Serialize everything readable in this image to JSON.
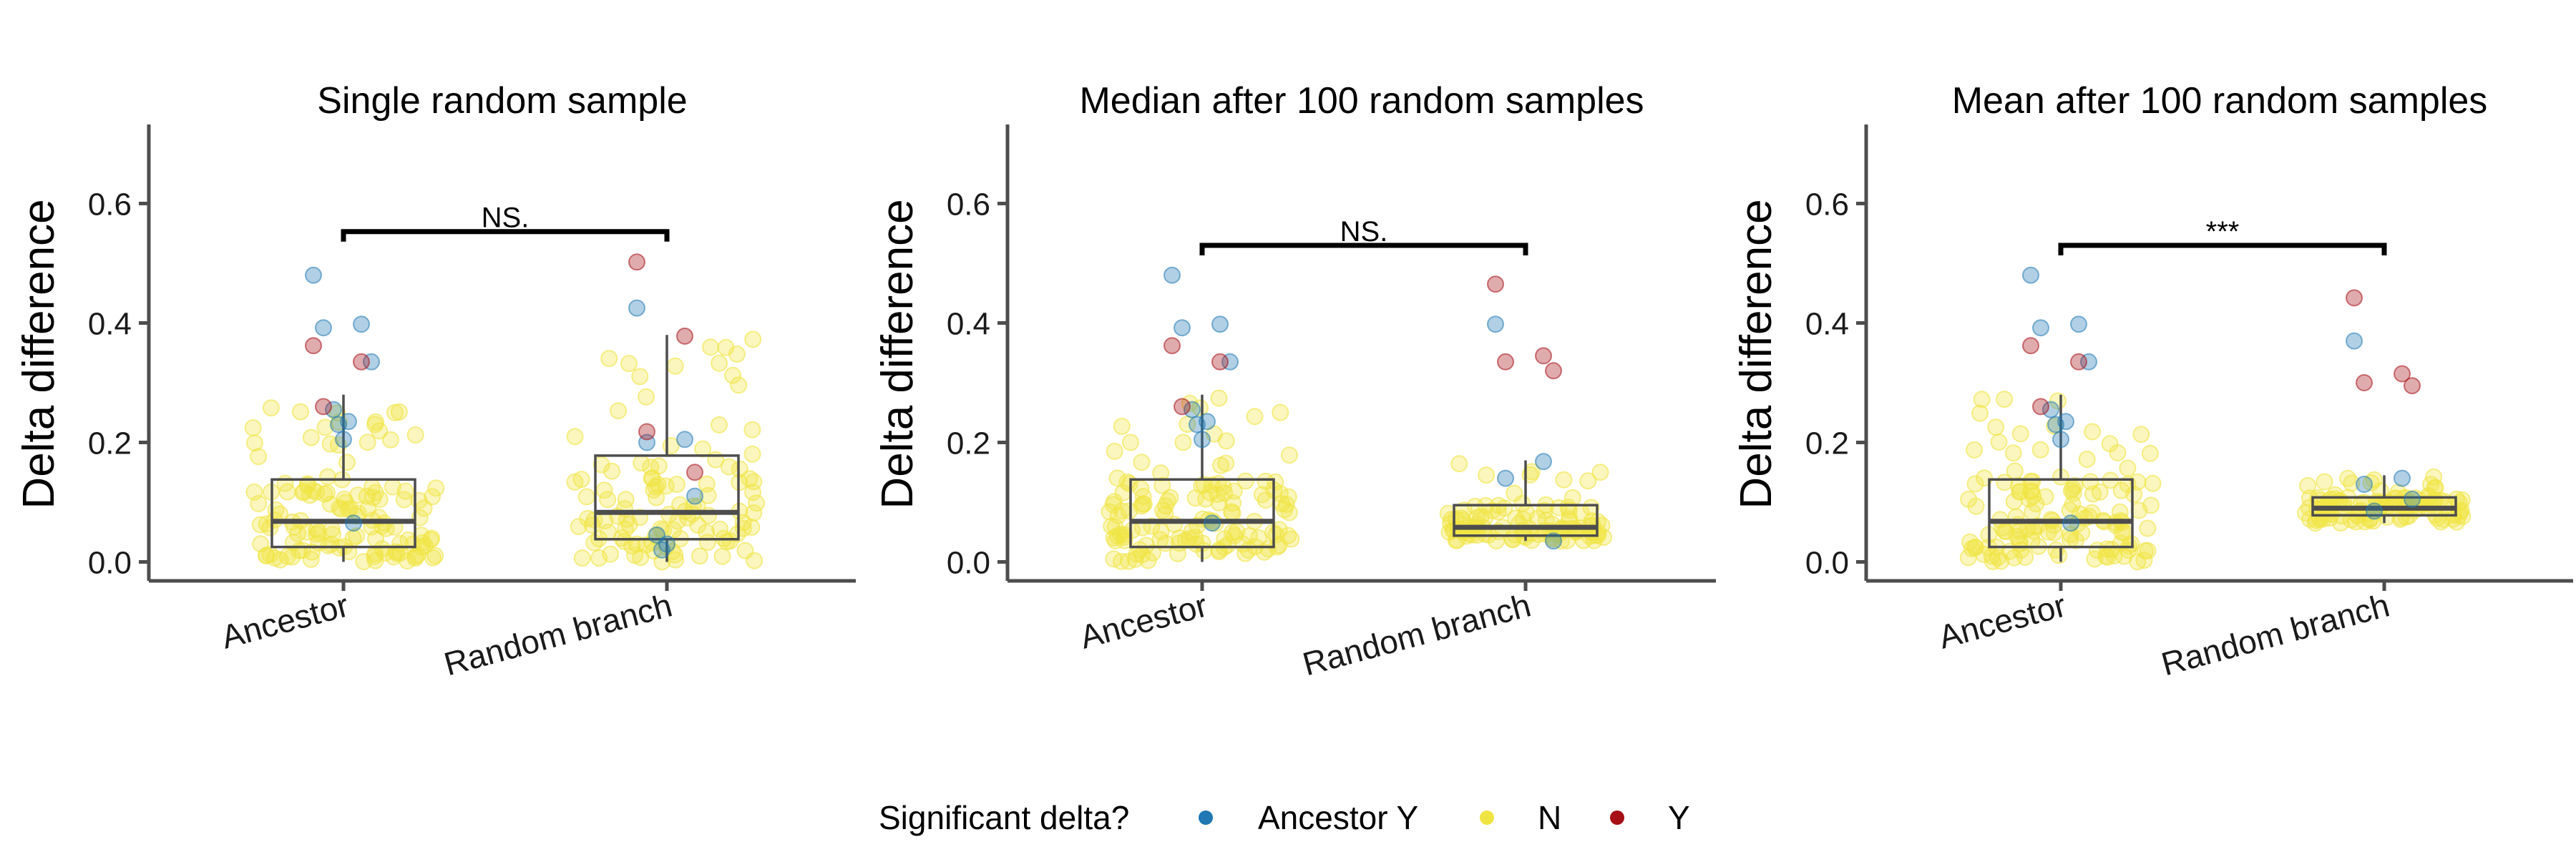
{
  "chart_data": [
    {
      "type": "boxplot",
      "title": "Single random sample",
      "ylabel": "Delta difference",
      "xlabel": "",
      "categories": [
        "Ancestor",
        "Random branch"
      ],
      "yticks": [
        "0.0",
        "0.2",
        "0.4",
        "0.6"
      ],
      "ylim": [
        -0.03,
        0.74
      ],
      "boxes": [
        {
          "category": "Ancestor",
          "q1": 0.025,
          "median": 0.068,
          "q3": 0.138,
          "whisker_low": 0.0,
          "whisker_high": 0.28
        },
        {
          "category": "Random branch",
          "q1": 0.038,
          "median": 0.083,
          "q3": 0.178,
          "whisker_low": 0.0,
          "whisker_high": 0.38
        }
      ],
      "significance": {
        "label": "NS.",
        "y": 0.553
      },
      "highlighted_points": [
        {
          "category": "Ancestor",
          "group": "Ancestor Y",
          "values": [
            0.48,
            0.398,
            0.392,
            0.335,
            0.255,
            0.23,
            0.205,
            0.235,
            0.065
          ]
        },
        {
          "category": "Ancestor",
          "group": "Y",
          "values": [
            0.362,
            0.335,
            0.26
          ]
        },
        {
          "category": "Random branch",
          "group": "Ancestor Y",
          "values": [
            0.425,
            0.205,
            0.2,
            0.11,
            0.045,
            0.02,
            0.03
          ]
        },
        {
          "category": "Random branch",
          "group": "Y",
          "values": [
            0.502,
            0.378,
            0.218,
            0.15
          ]
        }
      ],
      "background_points": {
        "group": "N",
        "count_per_category": [
          130,
          110
        ]
      }
    },
    {
      "type": "boxplot",
      "title": "Median after 100 random samples",
      "ylabel": "Delta difference",
      "xlabel": "",
      "categories": [
        "Ancestor",
        "Random branch"
      ],
      "yticks": [
        "0.0",
        "0.2",
        "0.4",
        "0.6"
      ],
      "ylim": [
        -0.03,
        0.74
      ],
      "boxes": [
        {
          "category": "Ancestor",
          "q1": 0.025,
          "median": 0.068,
          "q3": 0.138,
          "whisker_low": 0.0,
          "whisker_high": 0.28
        },
        {
          "category": "Random branch",
          "q1": 0.044,
          "median": 0.058,
          "q3": 0.095,
          "whisker_low": 0.035,
          "whisker_high": 0.17
        }
      ],
      "significance": {
        "label": "NS.",
        "y": 0.53
      },
      "highlighted_points": [
        {
          "category": "Ancestor",
          "group": "Ancestor Y",
          "values": [
            0.48,
            0.398,
            0.392,
            0.335,
            0.255,
            0.23,
            0.205,
            0.235,
            0.065
          ]
        },
        {
          "category": "Ancestor",
          "group": "Y",
          "values": [
            0.362,
            0.335,
            0.26
          ]
        },
        {
          "category": "Random branch",
          "group": "Ancestor Y",
          "values": [
            0.398,
            0.168,
            0.14,
            0.035
          ]
        },
        {
          "category": "Random branch",
          "group": "Y",
          "values": [
            0.465,
            0.345,
            0.335,
            0.32
          ]
        }
      ],
      "background_points": {
        "group": "N",
        "count_per_category": [
          130,
          110
        ]
      }
    },
    {
      "type": "boxplot",
      "title": "Mean after 100 random samples",
      "ylabel": "Delta difference",
      "xlabel": "",
      "categories": [
        "Ancestor",
        "Random branch"
      ],
      "yticks": [
        "0.0",
        "0.2",
        "0.4",
        "0.6"
      ],
      "ylim": [
        -0.03,
        0.74
      ],
      "boxes": [
        {
          "category": "Ancestor",
          "q1": 0.025,
          "median": 0.068,
          "q3": 0.138,
          "whisker_low": 0.0,
          "whisker_high": 0.28
        },
        {
          "category": "Random branch",
          "q1": 0.078,
          "median": 0.09,
          "q3": 0.108,
          "whisker_low": 0.065,
          "whisker_high": 0.145
        }
      ],
      "significance": {
        "label": "***",
        "y": 0.53
      },
      "highlighted_points": [
        {
          "category": "Ancestor",
          "group": "Ancestor Y",
          "values": [
            0.48,
            0.398,
            0.392,
            0.335,
            0.255,
            0.23,
            0.205,
            0.235,
            0.065
          ]
        },
        {
          "category": "Ancestor",
          "group": "Y",
          "values": [
            0.362,
            0.335,
            0.26
          ]
        },
        {
          "category": "Random branch",
          "group": "Ancestor Y",
          "values": [
            0.37,
            0.14,
            0.13,
            0.105,
            0.085
          ]
        },
        {
          "category": "Random branch",
          "group": "Y",
          "values": [
            0.442,
            0.315,
            0.3,
            0.295
          ]
        }
      ],
      "background_points": {
        "group": "N",
        "count_per_category": [
          130,
          110
        ]
      }
    }
  ],
  "legend": {
    "title": "Significant delta?",
    "position": "bottom",
    "items": [
      {
        "label": "Ancestor Y",
        "color": "#1f78b4"
      },
      {
        "label": "N",
        "color": "#f0e442"
      },
      {
        "label": "Y",
        "color": "#a50f15"
      }
    ]
  },
  "colors": {
    "Ancestor Y": "#1f78b4",
    "N": "#f0e442",
    "Y": "#a50f15",
    "box_stroke": "#4d4d4d",
    "axis": "#4d4d4d"
  }
}
